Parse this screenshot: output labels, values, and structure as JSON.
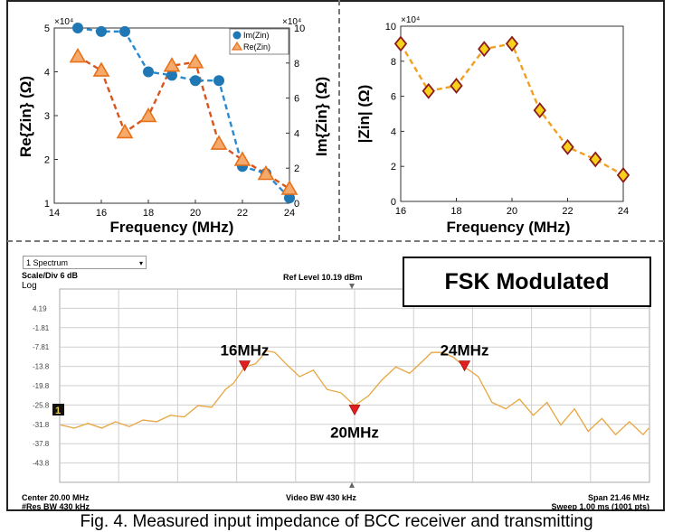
{
  "caption": "Fig. 4. Measured input impedance of BCC receiver and transmitting",
  "chart_data": [
    {
      "type": "line",
      "xlabel": "Frequency (MHz)",
      "ylabel": "Re{Zin} (Ω)",
      "y2label": "Im{Zin} (Ω)",
      "xlim": [
        14,
        24
      ],
      "ylim": [
        1,
        5
      ],
      "y2lim": [
        0,
        10
      ],
      "y_exponent": "×10⁴",
      "y2_exponent": "×10⁴",
      "xticks": [
        "14",
        "16",
        "18",
        "20",
        "22",
        "24"
      ],
      "yticks": [
        "1",
        "2",
        "3",
        "4",
        "5"
      ],
      "y2ticks": [
        "0",
        "2",
        "4",
        "6",
        "8",
        "10"
      ],
      "legend_position": "top-right",
      "grid": false,
      "x": [
        15,
        16,
        17,
        18,
        19,
        20,
        21,
        22,
        23,
        24
      ],
      "series": [
        {
          "name": "Im(Zin)",
          "axis": "right",
          "color": "#1f77b4",
          "marker": "circle",
          "values": [
            10,
            9.8,
            9.8,
            7.5,
            7.3,
            7.0,
            7.0,
            2.1,
            1.7,
            0.3
          ]
        },
        {
          "name": "Re(Zin)",
          "axis": "left",
          "color": "#e8711a",
          "marker": "triangle",
          "values": [
            4.35,
            4.03,
            2.62,
            2.99,
            4.14,
            4.22,
            2.36,
            1.99,
            1.67,
            1.33
          ]
        }
      ]
    },
    {
      "type": "line",
      "xlabel": "Frequency (MHz)",
      "ylabel": "|Zin| (Ω)",
      "xlim": [
        16,
        24
      ],
      "ylim": [
        0,
        10
      ],
      "y_exponent": "×10⁴",
      "xticks": [
        "16",
        "18",
        "20",
        "22",
        "24"
      ],
      "yticks": [
        "0",
        "2",
        "4",
        "6",
        "8",
        "10"
      ],
      "grid": false,
      "x": [
        16,
        17,
        18,
        19,
        20,
        21,
        22,
        23,
        24
      ],
      "series": [
        {
          "name": "",
          "color": "#e8a020",
          "marker": "diamond",
          "values": [
            9.0,
            6.3,
            6.6,
            8.7,
            9.0,
            5.2,
            3.1,
            2.4,
            1.5
          ]
        }
      ]
    },
    {
      "type": "line",
      "title": "FSK Modulated",
      "ylim": [
        -49.81,
        10.19
      ],
      "yticks": [
        "4.19",
        "-1.81",
        "-7.81",
        "-13.8",
        "-19.8",
        "-25.8",
        "-31.8",
        "-37.8",
        "-43.8"
      ],
      "xlim": [
        9.27,
        30.73
      ],
      "grid": true,
      "annotations": [
        {
          "label": "16MHz",
          "x": 16,
          "y": -13.8
        },
        {
          "label": "20MHz",
          "x": 20,
          "y": -27.5
        },
        {
          "label": "24MHz",
          "x": 24,
          "y": -13.8
        }
      ],
      "spectrum": {
        "x": [
          9.3,
          9.8,
          10.3,
          10.8,
          11.3,
          11.8,
          12.3,
          12.8,
          13.3,
          13.8,
          14.3,
          14.8,
          15.3,
          15.6,
          16.0,
          16.4,
          16.8,
          17.1,
          17.5,
          18.0,
          18.5,
          19.0,
          19.5,
          20.0,
          20.5,
          21.0,
          21.5,
          22.0,
          22.5,
          22.8,
          23.2,
          23.6,
          24.0,
          24.5,
          25.0,
          25.5,
          26.0,
          26.5,
          27.0,
          27.5,
          28.0,
          28.5,
          29.0,
          29.5,
          30.0,
          30.5,
          30.7
        ],
        "values": [
          -32,
          -33,
          -31.5,
          -33,
          -31,
          -32.5,
          -30.5,
          -31,
          -29,
          -29.5,
          -26,
          -26.5,
          -21,
          -19,
          -14,
          -13,
          -9,
          -9.5,
          -13,
          -17,
          -15,
          -21,
          -22,
          -26,
          -23,
          -18,
          -14,
          -16,
          -12,
          -9.5,
          -9.5,
          -11,
          -14,
          -17,
          -25,
          -27,
          -24,
          -29,
          -25,
          -32,
          -27,
          -34,
          -30,
          -35,
          -31,
          -35,
          -33
        ]
      }
    }
  ],
  "analyzer": {
    "dropdown_label": "1 Spectrum",
    "scale": "Scale/Div 6 dB",
    "log": "Log",
    "ref_level": "Ref Level 10.19 dBm",
    "trace_marker": "1",
    "center": "Center 20.00 MHz",
    "res_bw": "#Res BW 430 kHz",
    "video_bw": "Video BW 430 kHz",
    "span": "Span 21.46 MHz",
    "sweep": "Sweep 1.00 ms (1001 pts)"
  }
}
